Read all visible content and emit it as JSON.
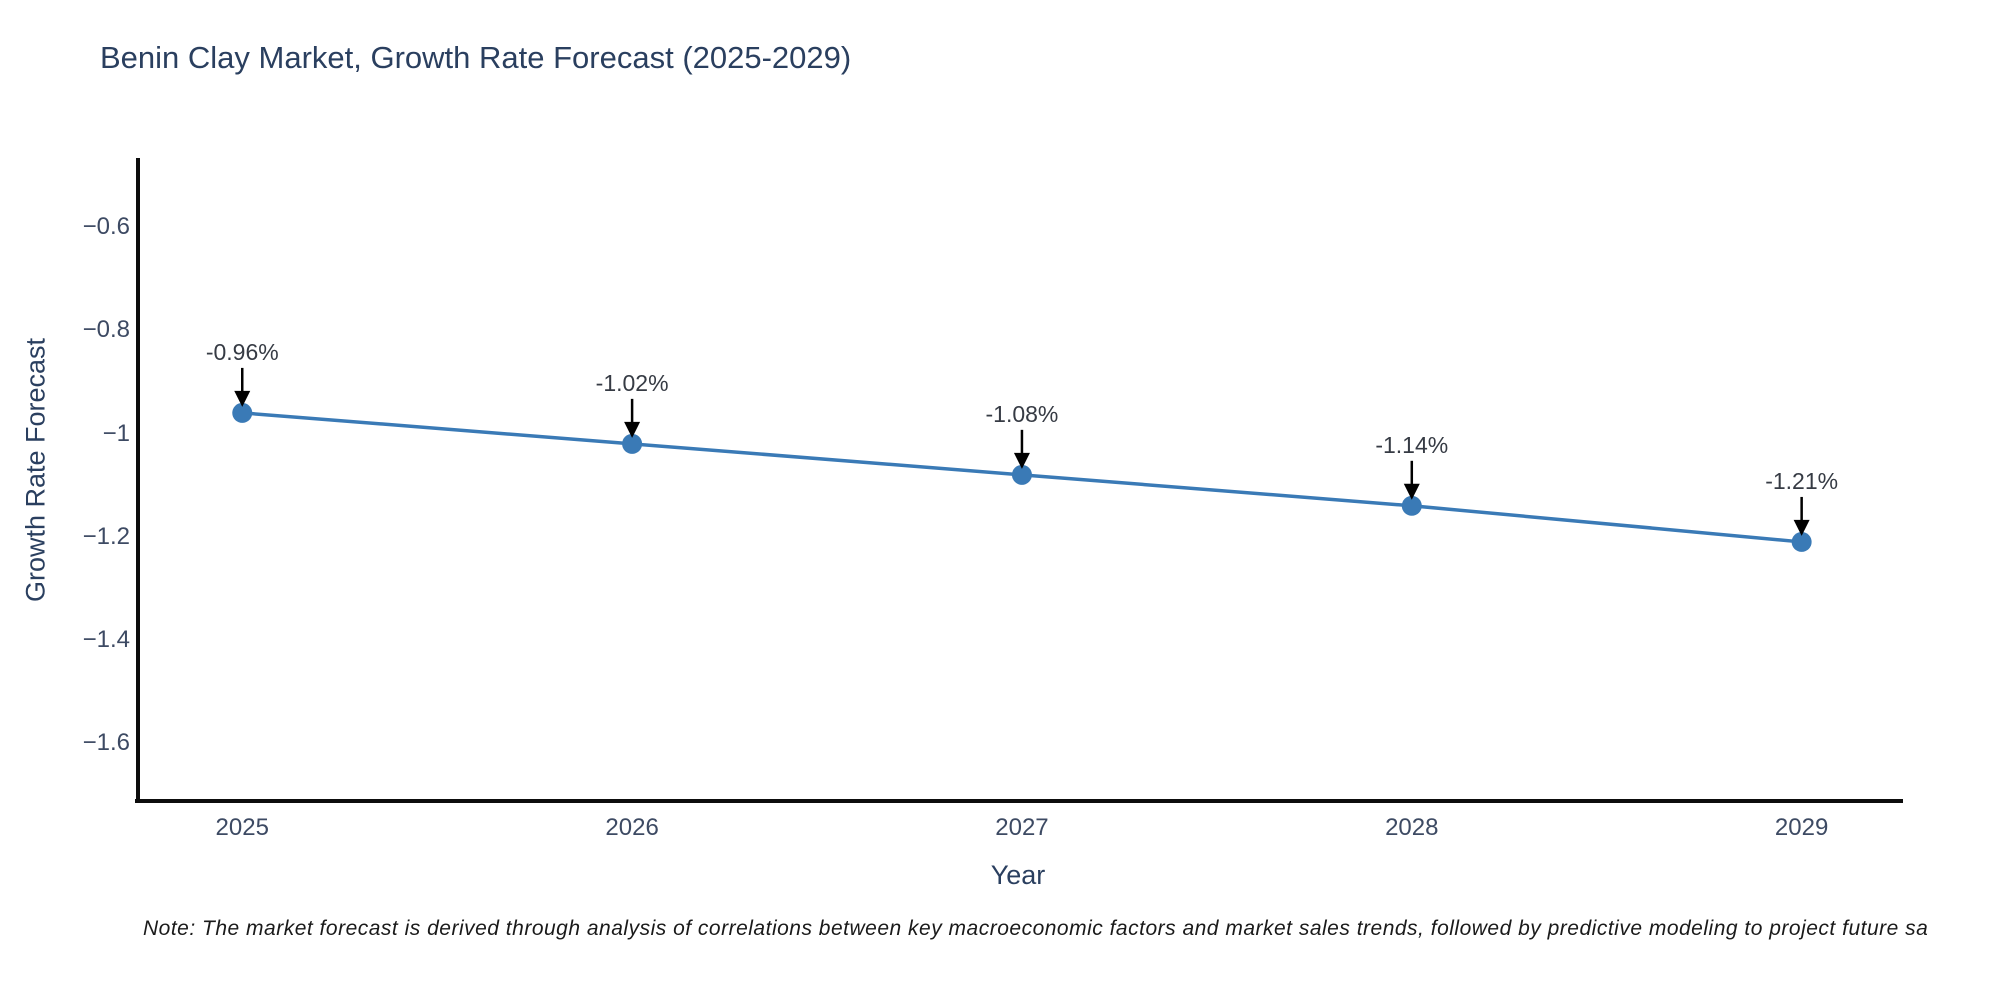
{
  "title": "Benin Clay Market, Growth Rate Forecast (2025-2029)",
  "note": "Note: The market forecast is derived through analysis of correlations between key macroeconomic factors and market sales trends, followed by predictive modeling to project future sa",
  "colors": {
    "accent_line": "#3a7ab6",
    "marker": "#3a7ab6",
    "axis_spine": "#0d0d0d",
    "title_text": "#2a3f5f",
    "tick_text": "#3d4a63",
    "annotation_text": "#363b44",
    "annotation_arrow": "#000000",
    "background": "#ffffff"
  },
  "chart_data": {
    "type": "line",
    "title": "Benin Clay Market, Growth Rate Forecast (2025-2029)",
    "x": [
      2025,
      2026,
      2027,
      2028,
      2029
    ],
    "series": [
      {
        "name": "Growth Rate Forecast",
        "values": [
          -0.96,
          -1.02,
          -1.08,
          -1.14,
          -1.21
        ]
      }
    ],
    "point_labels": [
      "-0.96%",
      "-1.02%",
      "-1.08%",
      "-1.14%",
      "-1.21%"
    ],
    "xlabel": "Year",
    "ylabel": "Growth Rate Forecast",
    "xlim": [
      2024.73,
      2029.26
    ],
    "ylim": [
      -1.71,
      -0.47
    ],
    "xticks": {
      "values": [
        2025,
        2026,
        2027,
        2028,
        2029
      ],
      "labels": [
        "2025",
        "2026",
        "2027",
        "2028",
        "2029"
      ]
    },
    "yticks": {
      "values": [
        -0.6,
        -0.8,
        -1.0,
        -1.2,
        -1.4,
        -1.6
      ],
      "labels": [
        "−0.6",
        "−0.8",
        "−1",
        "−1.2",
        "−1.4",
        "−1.6"
      ]
    },
    "grid": false,
    "legend_position": "none",
    "markers": true,
    "annotations_have_arrows": true
  }
}
